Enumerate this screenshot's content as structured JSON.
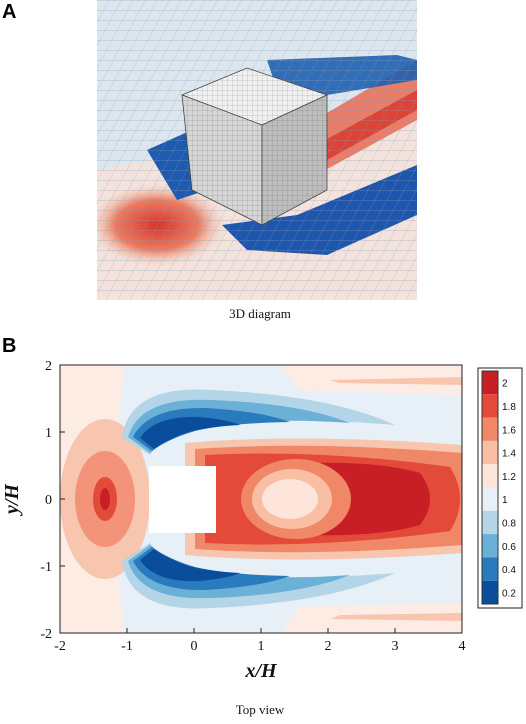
{
  "panel_a": {
    "letter": "A",
    "caption": "3D diagram"
  },
  "panel_b": {
    "letter": "B",
    "caption": "Top view"
  },
  "chart_data": {
    "type": "heatmap",
    "title": "",
    "xlabel": "x/H",
    "ylabel": "y/H",
    "xlim": [
      -2,
      4
    ],
    "ylim": [
      -2,
      2
    ],
    "x_ticks": [
      "-2",
      "-1",
      "0",
      "1",
      "2",
      "3",
      "4"
    ],
    "y_ticks": [
      "2",
      "1",
      "0",
      "-1",
      "-2"
    ],
    "obstacle": {
      "x": [
        -0.5,
        0.5
      ],
      "y": [
        -0.5,
        0.5
      ]
    },
    "colorbar": {
      "levels": [
        "2",
        "1.8",
        "1.6",
        "1.4",
        "1.2",
        "1",
        "0.8",
        "0.6",
        "0.4",
        "0.2"
      ],
      "colors": [
        "#c81f27",
        "#e34a3a",
        "#f08767",
        "#f9bfa5",
        "#fde5da",
        "#e6f0f6",
        "#b3d5e7",
        "#6bb0d6",
        "#2a7bbd",
        "#0a4e9b"
      ]
    },
    "grid": false
  }
}
